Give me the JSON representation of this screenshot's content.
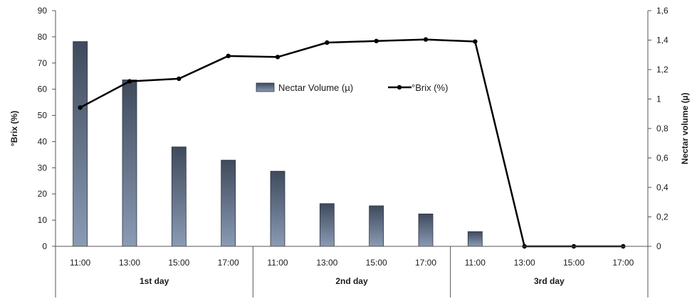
{
  "chart_data": {
    "type": "bar+line",
    "categories": [
      "11:00",
      "13:00",
      "15:00",
      "17:00",
      "11:00",
      "13:00",
      "15:00",
      "17:00",
      "11:00",
      "13:00",
      "15:00",
      "17:00"
    ],
    "groups": [
      {
        "label": "1st day",
        "count": 4
      },
      {
        "label": "2nd day",
        "count": 4
      },
      {
        "label": "3rd day",
        "count": 4
      }
    ],
    "series": [
      {
        "name": "Nectar Volume (µ)",
        "kind": "bar",
        "axis": "right",
        "values": [
          1.39,
          1.13,
          0.675,
          0.585,
          0.51,
          0.29,
          0.275,
          0.22,
          0.1,
          0,
          0,
          0
        ],
        "color": "#5d6d85"
      },
      {
        "name": "°Brix (%)",
        "kind": "line",
        "axis": "left",
        "values": [
          53,
          63,
          64,
          72.7,
          72.3,
          77.8,
          78.4,
          79,
          78.2,
          0,
          0,
          0
        ],
        "color": "#000000"
      }
    ],
    "ylabel_left": "°Brix (%)",
    "ylabel_right": "Nectar volume (µ)",
    "ylim_left": [
      0,
      90
    ],
    "ylim_right": [
      0,
      1.6
    ],
    "yticks_left": [
      "0",
      "10",
      "20",
      "30",
      "40",
      "50",
      "60",
      "70",
      "80",
      "90"
    ],
    "yticks_right": [
      "0",
      "0,2",
      "0,4",
      "0,6",
      "0,8",
      "1",
      "1,2",
      "1,4",
      "1,6"
    ],
    "grid": false,
    "legend_position": "inside-top-center"
  }
}
